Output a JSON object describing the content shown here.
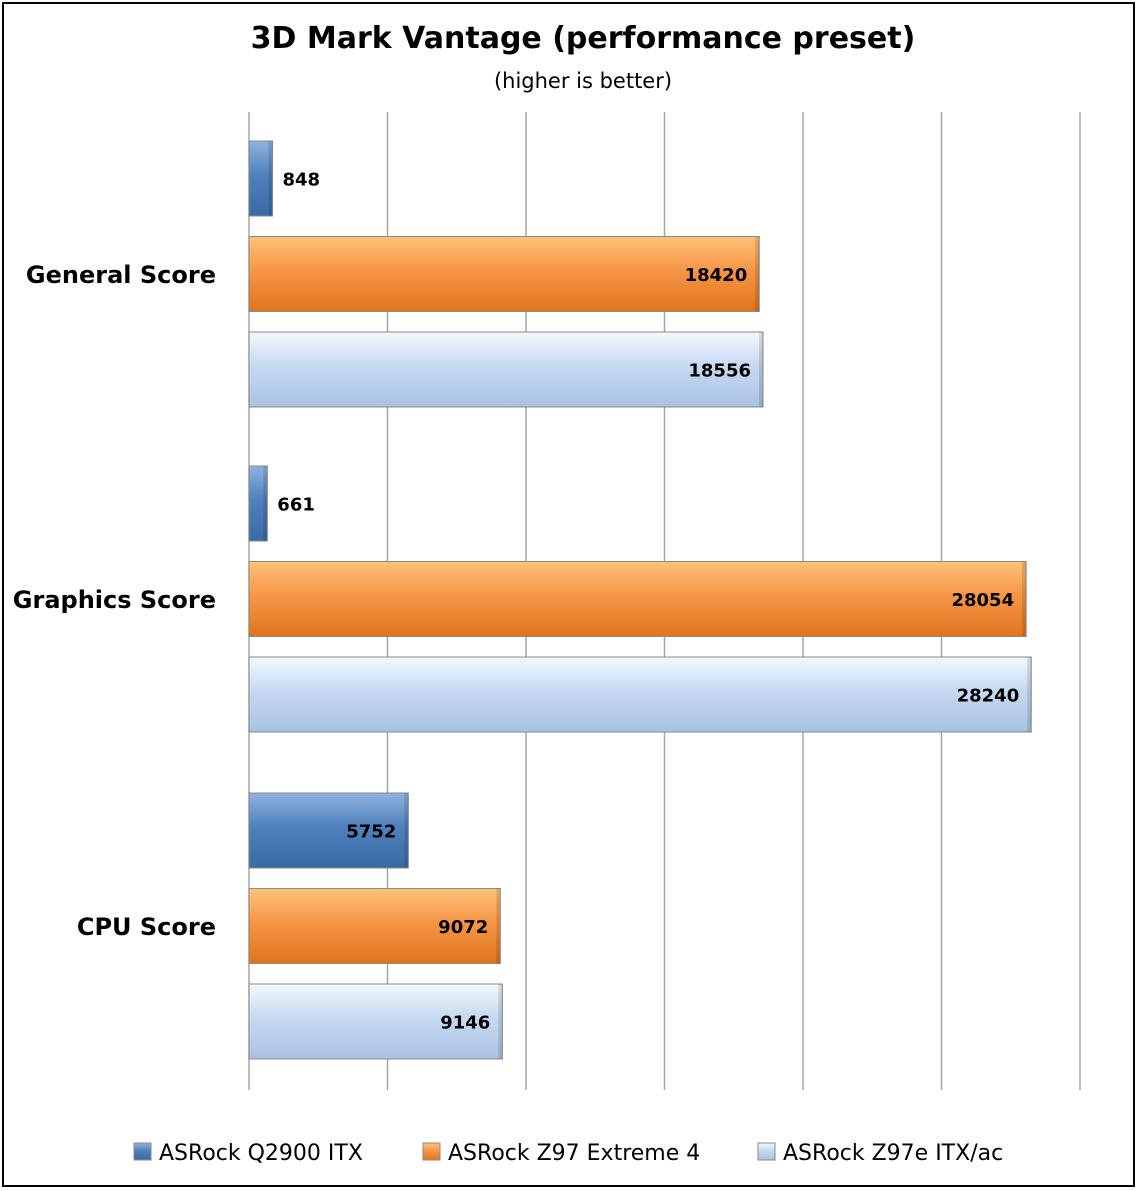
{
  "chart_data": {
    "type": "bar",
    "orientation": "horizontal",
    "title": "3D Mark Vantage (performance preset)",
    "subtitle": "(higher is better)",
    "categories": [
      "General Score",
      "Graphics Score",
      "CPU Score"
    ],
    "series": [
      {
        "name": "ASRock Q2900 ITX",
        "color": "#4f81bd",
        "values": [
          848,
          661,
          5752
        ]
      },
      {
        "name": "ASRock Z97 Extreme 4",
        "color": "#f79646",
        "values": [
          18420,
          28054,
          9072
        ]
      },
      {
        "name": "ASRock Z97e ITX/ac",
        "color": "#c6d9f1",
        "values": [
          18556,
          28240,
          9146
        ]
      }
    ],
    "xlim": [
      0,
      30000
    ],
    "grid": true,
    "legend": "bottom"
  }
}
